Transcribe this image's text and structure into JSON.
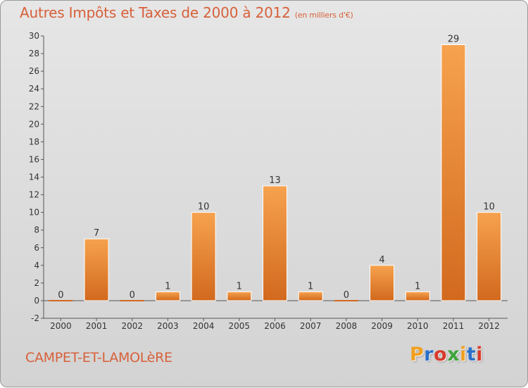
{
  "chart_data": {
    "type": "bar",
    "title": "Autres Impôts et Taxes de 2000 à 2012",
    "subtitle": "(en milliers d'€)",
    "categories": [
      "2000",
      "2001",
      "2002",
      "2003",
      "2004",
      "2005",
      "2006",
      "2007",
      "2008",
      "2009",
      "2010",
      "2011",
      "2012"
    ],
    "values": [
      0,
      7,
      0,
      1,
      10,
      1,
      13,
      1,
      0,
      4,
      1,
      29,
      10
    ],
    "ylim": [
      -2,
      30
    ],
    "yticks": [
      -2,
      0,
      2,
      4,
      6,
      8,
      10,
      12,
      14,
      16,
      18,
      20,
      22,
      24,
      26,
      28,
      30
    ],
    "grid": false,
    "xlabel": "",
    "ylabel": ""
  },
  "footer": {
    "commune": "CAMPET-ET-LAMOLèRE",
    "brand": "Proxiti",
    "brand_colors": [
      "#f0a020",
      "#2a6fc9",
      "#d73a2c",
      "#3ea43a",
      "#f0a020",
      "#2a6fc9",
      "#d73a2c"
    ]
  },
  "colors": {
    "title": "#d7603a",
    "bar_light": "#f6a24e",
    "bar_dark": "#d2691e",
    "axis": "#555555"
  }
}
